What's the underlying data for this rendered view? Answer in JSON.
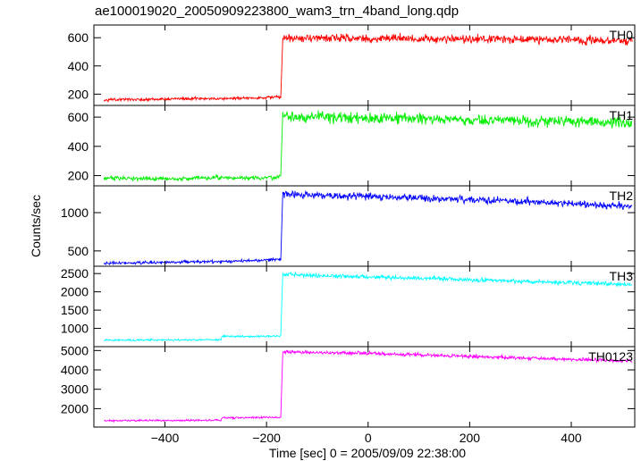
{
  "title": "ae100019020_20050909223800_wam3_trn_4band_long.qdp",
  "chart_data": {
    "type": "line",
    "title": "ae100019020_20050909223800_wam3_trn_4band_long.qdp",
    "xlabel": "Time [sec] 0 = 2005/09/09 22:38:00",
    "ylabel": "Counts/sec",
    "xlim": [
      -540,
      525
    ],
    "x_ticks": [
      -400,
      -200,
      0,
      200,
      400
    ],
    "x_tick_labels": [
      "−400",
      "−200",
      "0",
      "200",
      "400"
    ],
    "x_range": [
      -520,
      520
    ],
    "step_time": -170,
    "grid": false,
    "panels": [
      {
        "name": "TH0",
        "color": "#ff0000",
        "ylim": [
          120,
          690
        ],
        "y_ticks": [
          200,
          400,
          600
        ],
        "y_tick_labels": [
          "200",
          "400",
          "600"
        ],
        "segments": [
          {
            "x": [
              -520,
              -400,
              -300,
              -200,
              -172
            ],
            "y": [
              160,
              165,
              170,
              175,
              180
            ]
          },
          {
            "x": [
              -168,
              -100,
              0,
              100,
              200,
              300,
              400,
              520
            ],
            "y": [
              600,
              598,
              595,
              592,
              590,
              588,
              585,
              580
            ]
          }
        ],
        "noise": [
          8,
          22
        ]
      },
      {
        "name": "TH1",
        "color": "#00ee00",
        "ylim": [
          130,
          680
        ],
        "y_ticks": [
          200,
          400,
          600
        ],
        "y_tick_labels": [
          "200",
          "400",
          "600"
        ],
        "segments": [
          {
            "x": [
              -520,
              -400,
              -300,
              -200,
              -172
            ],
            "y": [
              180,
              180,
              185,
              185,
              190
            ]
          },
          {
            "x": [
              -168,
              -100,
              0,
              100,
              200,
              300,
              400,
              520
            ],
            "y": [
              605,
              600,
              595,
              588,
              580,
              575,
              570,
              560
            ]
          }
        ],
        "noise": [
          12,
          28
        ]
      },
      {
        "name": "TH2",
        "color": "#0000ff",
        "ylim": [
          300,
          1350
        ],
        "y_ticks": [
          500,
          1000
        ],
        "y_tick_labels": [
          "500",
          "1000"
        ],
        "segments": [
          {
            "x": [
              -520,
              -400,
              -300,
              -200,
              -172
            ],
            "y": [
              340,
              350,
              360,
              380,
              390
            ]
          },
          {
            "x": [
              -168,
              -100,
              0,
              100,
              200,
              300,
              400,
              520
            ],
            "y": [
              1250,
              1230,
              1210,
              1190,
              1170,
              1150,
              1120,
              1080
            ]
          }
        ],
        "noise": [
          15,
          35
        ]
      },
      {
        "name": "TH3",
        "color": "#00ffff",
        "ylim": [
          500,
          2700
        ],
        "y_ticks": [
          1000,
          1500,
          2000,
          2500
        ],
        "y_tick_labels": [
          "1000",
          "1500",
          "2000",
          "2500"
        ],
        "segments": [
          {
            "x": [
              -520,
              -400,
              -300,
              -290
            ],
            "y": [
              680,
              680,
              690,
              690
            ]
          },
          {
            "x": [
              -288,
              -200,
              -172
            ],
            "y": [
              780,
              780,
              790
            ]
          },
          {
            "x": [
              -168,
              -100,
              0,
              100,
              200,
              300,
              400,
              520
            ],
            "y": [
              2480,
              2450,
              2410,
              2370,
              2330,
              2290,
              2250,
              2200
            ]
          }
        ],
        "noise": [
          20,
          45
        ]
      },
      {
        "name": "TH0123",
        "color": "#ff00ff",
        "ylim": [
          1050,
          5200
        ],
        "y_ticks": [
          2000,
          3000,
          4000,
          5000
        ],
        "y_tick_labels": [
          "2000",
          "3000",
          "4000",
          "5000"
        ],
        "segments": [
          {
            "x": [
              -520,
              -400,
              -300,
              -290
            ],
            "y": [
              1380,
              1390,
              1400,
              1400
            ]
          },
          {
            "x": [
              -288,
              -200,
              -172
            ],
            "y": [
              1530,
              1550,
              1560
            ]
          },
          {
            "x": [
              -168,
              -100,
              0,
              100,
              200,
              300,
              400,
              520
            ],
            "y": [
              4950,
              4900,
              4850,
              4780,
              4700,
              4620,
              4550,
              4450
            ]
          }
        ],
        "noise": [
          35,
          70
        ]
      }
    ]
  }
}
